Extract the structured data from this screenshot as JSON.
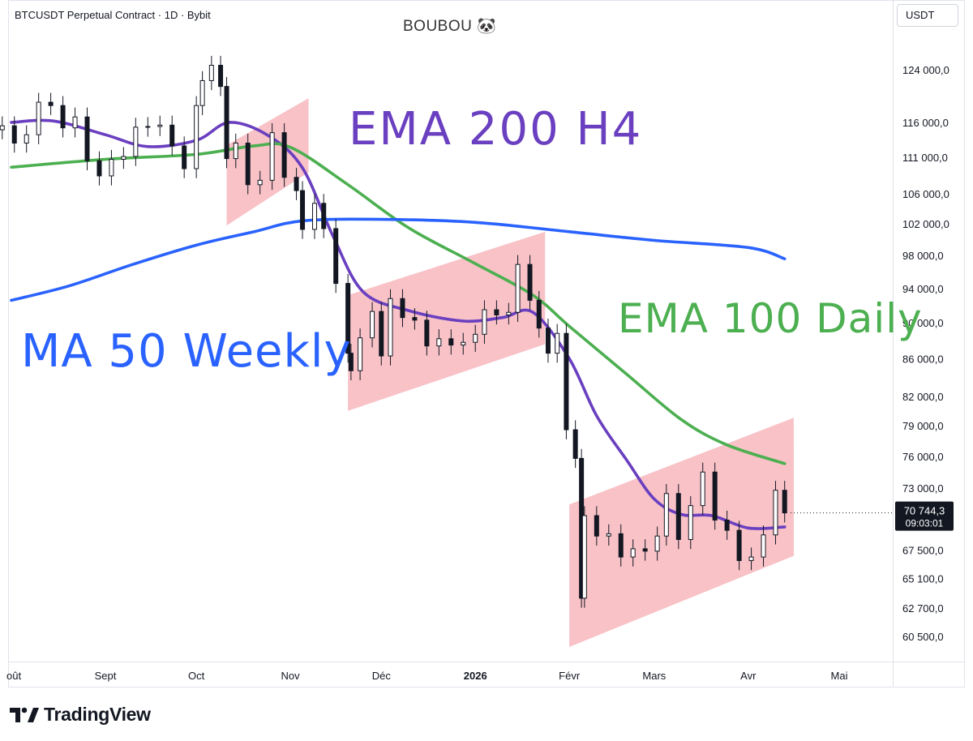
{
  "header": {
    "symbol": "BTCUSDT Perpetual Contract · 1D · Bybit",
    "author": "BOUBOU 🐼",
    "currency": "USDT"
  },
  "brand": {
    "name": "TradingView"
  },
  "colors": {
    "ema200_h4": "#6a3fc0",
    "ema100_daily": "#4caf50",
    "ma50_weekly": "#2962ff",
    "channel": "#f8bfc4",
    "candle": "#131722",
    "last_price_bg": "#131722"
  },
  "last_price": {
    "value": "70 744,3",
    "countdown": "09:03:01"
  },
  "chart_data": {
    "type": "candlestick",
    "title": "",
    "y_scale": "log",
    "ylim": [
      59000,
      128000
    ],
    "price_axis_labels": [
      "124 000,0",
      "116 000,0",
      "111 000,0",
      "106 000,0",
      "102 000,0",
      "98 000,0",
      "94 000,0",
      "90 000,0",
      "86 000,0",
      "82 000,0",
      "79 000,0",
      "76 000,0",
      "73 000,0",
      "67 500,0",
      "65 100,0",
      "62 700,0",
      "60 500,0"
    ],
    "price_axis_values": [
      124000,
      116000,
      111000,
      106000,
      102000,
      98000,
      94000,
      90000,
      86000,
      82000,
      79000,
      76000,
      73000,
      67500,
      65100,
      62700,
      60500
    ],
    "time_axis_labels": [
      "oût",
      "Sept",
      "Oct",
      "Nov",
      "Déc",
      "2026",
      "Févr",
      "Mars",
      "Avr",
      "Mai"
    ],
    "time_axis_dates": [
      "2025-08-01",
      "2025-09-01",
      "2025-10-01",
      "2025-11-01",
      "2025-12-01",
      "2026-01-01",
      "2026-02-01",
      "2026-03-01",
      "2026-04-01",
      "2026-05-01"
    ],
    "candles": {
      "columns": [
        "date",
        "close"
      ],
      "rows": [
        [
          "2025-07-29",
          115500
        ],
        [
          "2025-08-02",
          113000
        ],
        [
          "2025-08-06",
          114200
        ],
        [
          "2025-08-10",
          119000
        ],
        [
          "2025-08-14",
          118500
        ],
        [
          "2025-08-18",
          115200
        ],
        [
          "2025-08-22",
          116800
        ],
        [
          "2025-08-26",
          110500
        ],
        [
          "2025-08-30",
          108400
        ],
        [
          "2025-09-03",
          110700
        ],
        [
          "2025-09-07",
          111100
        ],
        [
          "2025-09-11",
          115300
        ],
        [
          "2025-09-15",
          115400
        ],
        [
          "2025-09-19",
          115600
        ],
        [
          "2025-09-23",
          112600
        ],
        [
          "2025-09-27",
          109400
        ],
        [
          "2025-10-01",
          118500
        ],
        [
          "2025-10-03",
          122300
        ],
        [
          "2025-10-06",
          124700
        ],
        [
          "2025-10-09",
          121400
        ],
        [
          "2025-10-11",
          110800
        ],
        [
          "2025-10-14",
          113000
        ],
        [
          "2025-10-18",
          107200
        ],
        [
          "2025-10-22",
          107800
        ],
        [
          "2025-10-26",
          114500
        ],
        [
          "2025-10-30",
          108200
        ],
        [
          "2025-11-03",
          106400
        ],
        [
          "2025-11-05",
          101300
        ],
        [
          "2025-11-09",
          104700
        ],
        [
          "2025-11-12",
          101400
        ],
        [
          "2025-11-16",
          94600
        ],
        [
          "2025-11-20",
          86600
        ],
        [
          "2025-11-21",
          84700
        ],
        [
          "2025-11-24",
          88300
        ],
        [
          "2025-11-28",
          91300
        ],
        [
          "2025-12-01",
          86300
        ],
        [
          "2025-12-04",
          92800
        ],
        [
          "2025-12-08",
          90600
        ],
        [
          "2025-12-12",
          90300
        ],
        [
          "2025-12-16",
          87400
        ],
        [
          "2025-12-20",
          88200
        ],
        [
          "2025-12-24",
          87500
        ],
        [
          "2025-12-28",
          87800
        ],
        [
          "2026-01-01",
          88700
        ],
        [
          "2026-01-04",
          91500
        ],
        [
          "2026-01-08",
          90900
        ],
        [
          "2026-01-12",
          91200
        ],
        [
          "2026-01-15",
          96900
        ],
        [
          "2026-01-19",
          92600
        ],
        [
          "2026-01-22",
          89400
        ],
        [
          "2026-01-25",
          86600
        ],
        [
          "2026-01-28",
          88800
        ],
        [
          "2026-01-31",
          78600
        ],
        [
          "2026-02-03",
          75800
        ],
        [
          "2026-02-05",
          63500
        ],
        [
          "2026-02-06",
          70500
        ],
        [
          "2026-02-10",
          68700
        ],
        [
          "2026-02-14",
          68900
        ],
        [
          "2026-02-18",
          66900
        ],
        [
          "2026-02-22",
          67600
        ],
        [
          "2026-02-26",
          67400
        ],
        [
          "2026-03-02",
          68700
        ],
        [
          "2026-03-05",
          72500
        ],
        [
          "2026-03-09",
          68400
        ],
        [
          "2026-03-13",
          71400
        ],
        [
          "2026-03-17",
          74500
        ],
        [
          "2026-03-21",
          70100
        ],
        [
          "2026-03-25",
          69200
        ],
        [
          "2026-03-29",
          66600
        ],
        [
          "2026-04-02",
          66900
        ],
        [
          "2026-04-06",
          68800
        ],
        [
          "2026-04-10",
          72800
        ],
        [
          "2026-04-13",
          70744
        ]
      ]
    },
    "series": [
      {
        "name": "EMA 200 H4",
        "columns": [
          "date",
          "value"
        ],
        "points": [
          [
            "2025-08-01",
            116000
          ],
          [
            "2025-08-15",
            116200
          ],
          [
            "2025-09-01",
            114200
          ],
          [
            "2025-09-15",
            112500
          ],
          [
            "2025-10-01",
            113400
          ],
          [
            "2025-10-12",
            116000
          ],
          [
            "2025-10-25",
            114000
          ],
          [
            "2025-11-05",
            109500
          ],
          [
            "2025-11-15",
            100500
          ],
          [
            "2025-11-25",
            93600
          ],
          [
            "2025-12-10",
            91400
          ],
          [
            "2025-12-28",
            90200
          ],
          [
            "2026-01-10",
            90600
          ],
          [
            "2026-01-20",
            91200
          ],
          [
            "2026-02-01",
            86000
          ],
          [
            "2026-02-10",
            80000
          ],
          [
            "2026-02-20",
            75600
          ],
          [
            "2026-03-01",
            72000
          ],
          [
            "2026-03-10",
            70600
          ],
          [
            "2026-03-20",
            70500
          ],
          [
            "2026-04-01",
            69400
          ],
          [
            "2026-04-13",
            69500
          ]
        ]
      },
      {
        "name": "EMA 100 Daily",
        "columns": [
          "date",
          "value"
        ],
        "points": [
          [
            "2025-08-01",
            109600
          ],
          [
            "2025-09-01",
            110700
          ],
          [
            "2025-10-01",
            111400
          ],
          [
            "2025-10-20",
            112600
          ],
          [
            "2025-11-01",
            112400
          ],
          [
            "2025-11-20",
            107200
          ],
          [
            "2025-12-10",
            101500
          ],
          [
            "2026-01-01",
            97000
          ],
          [
            "2026-01-20",
            93200
          ],
          [
            "2026-02-01",
            89600
          ],
          [
            "2026-02-20",
            84300
          ],
          [
            "2026-03-10",
            79600
          ],
          [
            "2026-03-25",
            77100
          ],
          [
            "2026-04-13",
            75300
          ]
        ]
      },
      {
        "name": "MA 50 Weekly",
        "columns": [
          "date",
          "value"
        ],
        "points": [
          [
            "2025-08-01",
            92600
          ],
          [
            "2025-08-20",
            94300
          ],
          [
            "2025-09-10",
            96900
          ],
          [
            "2025-10-01",
            99300
          ],
          [
            "2025-10-20",
            101000
          ],
          [
            "2025-11-05",
            102400
          ],
          [
            "2025-12-01",
            102600
          ],
          [
            "2026-01-01",
            102200
          ],
          [
            "2026-02-01",
            101000
          ],
          [
            "2026-03-01",
            99900
          ],
          [
            "2026-04-01",
            99000
          ],
          [
            "2026-04-13",
            97600
          ]
        ]
      }
    ],
    "channels": [
      {
        "columns": [
          "date",
          "bottom",
          "top"
        ],
        "start": [
          "2025-10-11",
          101800,
          112700
        ],
        "end": [
          "2025-11-07",
          108900,
          119600
        ]
      },
      {
        "columns": [
          "date",
          "bottom",
          "top"
        ],
        "start": [
          "2025-11-20",
          80500,
          93200
        ],
        "end": [
          "2026-01-24",
          87600,
          101000
        ]
      },
      {
        "columns": [
          "date",
          "bottom",
          "top"
        ],
        "start": [
          "2026-02-01",
          59700,
          71500
        ],
        "end": [
          "2026-04-16",
          67000,
          79800
        ]
      }
    ],
    "annotations": [
      {
        "id": "ema200",
        "text": "EMA 200 H4"
      },
      {
        "id": "ema100",
        "text": "EMA 100 Daily"
      },
      {
        "id": "ma50",
        "text": "MA 50 Weekly"
      }
    ]
  }
}
